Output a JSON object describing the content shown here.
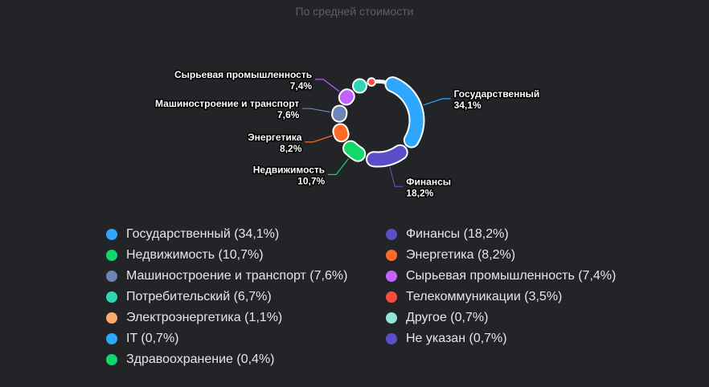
{
  "title": "По средней стоимости",
  "chart_data": {
    "type": "pie",
    "variant": "donut",
    "unit": "%",
    "title": "По средней стоимости",
    "legend_position": "bottom",
    "slices": [
      {
        "label": "Государственный",
        "value": 34.1,
        "value_label": "34,1%",
        "color": "#2ea8ff"
      },
      {
        "label": "Финансы",
        "value": 18.2,
        "value_label": "18,2%",
        "color": "#5a4fc9"
      },
      {
        "label": "Недвижимость",
        "value": 10.7,
        "value_label": "10,7%",
        "color": "#12d86a"
      },
      {
        "label": "Энергетика",
        "value": 8.2,
        "value_label": "8,2%",
        "color": "#ff6a2b"
      },
      {
        "label": "Машиностроение и транспорт",
        "value": 7.6,
        "value_label": "7,6%",
        "color": "#6e85b7"
      },
      {
        "label": "Сырьевая промышленность",
        "value": 7.4,
        "value_label": "7,4%",
        "color": "#c362ff"
      },
      {
        "label": "Потребительский",
        "value": 6.7,
        "value_label": "6,7%",
        "color": "#2ed8b6"
      },
      {
        "label": "Телекоммуникации",
        "value": 3.5,
        "value_label": "3,5%",
        "color": "#ff4b3e"
      },
      {
        "label": "Электроэнергетика",
        "value": 1.1,
        "value_label": "1,1%",
        "color": "#ffa96b"
      },
      {
        "label": "Другое",
        "value": 0.7,
        "value_label": "0,7%",
        "color": "#8fe5d8"
      },
      {
        "label": "IT",
        "value": 0.7,
        "value_label": "0,7%",
        "color": "#2ea8ff"
      },
      {
        "label": "Не указан",
        "value": 0.7,
        "value_label": "0,7%",
        "color": "#5a4fc9"
      },
      {
        "label": "Здравоохранение",
        "value": 0.4,
        "value_label": "0,4%",
        "color": "#12d86a"
      }
    ],
    "labeled_slices": [
      0,
      1,
      2,
      3,
      4,
      5
    ]
  },
  "legend": [
    {
      "text": "Государственный (34,1%)",
      "color": "#2ea8ff"
    },
    {
      "text": "Финансы (18,2%)",
      "color": "#5a4fc9"
    },
    {
      "text": "Недвижимость (10,7%)",
      "color": "#12d86a"
    },
    {
      "text": "Энергетика (8,2%)",
      "color": "#ff6a2b"
    },
    {
      "text": "Машиностроение и транспорт (7,6%)",
      "color": "#6e85b7"
    },
    {
      "text": "Сырьевая промышленность (7,4%)",
      "color": "#c362ff"
    },
    {
      "text": "Потребительский (6,7%)",
      "color": "#2ed8b6"
    },
    {
      "text": "Телекоммуникации (3,5%)",
      "color": "#ff4b3e"
    },
    {
      "text": "Электроэнергетика (1,1%)",
      "color": "#ffa96b"
    },
    {
      "text": "Другое (0,7%)",
      "color": "#8fe5d8"
    },
    {
      "text": "IT (0,7%)",
      "color": "#2ea8ff"
    },
    {
      "text": "Не указан (0,7%)",
      "color": "#5a4fc9"
    },
    {
      "text": "Здравоохранение (0,4%)",
      "color": "#12d86a"
    }
  ]
}
